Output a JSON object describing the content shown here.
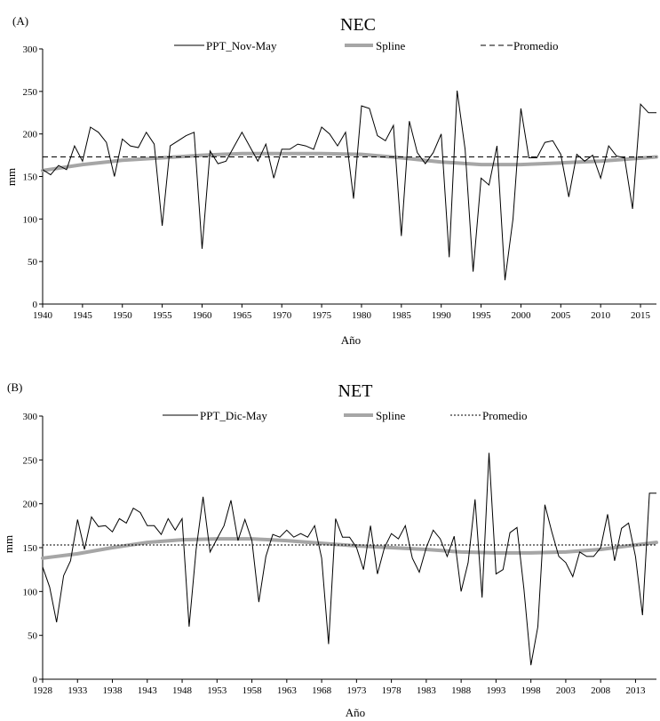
{
  "chart_data": [
    {
      "type": "line",
      "panel_label": "(A)",
      "title": "NEC",
      "xlabel": "Año",
      "ylabel": "mm",
      "ylim": [
        0,
        300
      ],
      "yticks": [
        0,
        50,
        100,
        150,
        200,
        250,
        300
      ],
      "xlim": [
        1940,
        2017
      ],
      "xticks": [
        1940,
        1945,
        1950,
        1955,
        1960,
        1965,
        1970,
        1975,
        1980,
        1985,
        1990,
        1995,
        2000,
        2005,
        2010,
        2015
      ],
      "grid": false,
      "legend_position": "top",
      "series": [
        {
          "name": "PPT_Nov-May",
          "style": "solid-thin",
          "color": "#000000",
          "x": [
            1940,
            1941,
            1942,
            1943,
            1944,
            1945,
            1946,
            1947,
            1948,
            1949,
            1950,
            1951,
            1952,
            1953,
            1954,
            1955,
            1956,
            1957,
            1958,
            1959,
            1960,
            1961,
            1962,
            1963,
            1964,
            1965,
            1966,
            1967,
            1968,
            1969,
            1970,
            1971,
            1972,
            1973,
            1974,
            1975,
            1976,
            1977,
            1978,
            1979,
            1980,
            1981,
            1982,
            1983,
            1984,
            1985,
            1986,
            1987,
            1988,
            1989,
            1990,
            1991,
            1992,
            1993,
            1994,
            1995,
            1996,
            1997,
            1998,
            1999,
            2000,
            2001,
            2002,
            2003,
            2004,
            2005,
            2006,
            2007,
            2008,
            2009,
            2010,
            2011,
            2012,
            2013,
            2014,
            2015,
            2016,
            2017
          ],
          "values": [
            158,
            152,
            163,
            158,
            186,
            168,
            208,
            202,
            190,
            150,
            194,
            186,
            184,
            202,
            188,
            92,
            186,
            192,
            198,
            202,
            65,
            180,
            165,
            168,
            185,
            202,
            185,
            168,
            188,
            148,
            182,
            182,
            188,
            186,
            182,
            208,
            200,
            186,
            202,
            124,
            233,
            230,
            198,
            192,
            210,
            80,
            215,
            178,
            165,
            178,
            200,
            55,
            251,
            182,
            38,
            148,
            140,
            186,
            28,
            100,
            230,
            172,
            172,
            190,
            192,
            176,
            126,
            176,
            168,
            175,
            148,
            186,
            174,
            172,
            112,
            235,
            225,
            225
          ]
        },
        {
          "name": "Spline",
          "style": "thick-gray",
          "color": "#a6a6a6",
          "x": [
            1940,
            1945,
            1950,
            1955,
            1960,
            1965,
            1970,
            1975,
            1980,
            1985,
            1990,
            1995,
            2000,
            2005,
            2010,
            2017
          ],
          "values": [
            157,
            164,
            169,
            172,
            175,
            177,
            177,
            177,
            176,
            172,
            167,
            164,
            164,
            166,
            168,
            173
          ]
        },
        {
          "name": "Promedio",
          "style": "dashed",
          "color": "#000000",
          "x": [
            1940,
            2017
          ],
          "values": [
            173,
            173
          ]
        }
      ]
    },
    {
      "type": "line",
      "panel_label": "(B)",
      "title": "NET",
      "xlabel": "Año",
      "ylabel": "mm",
      "ylim": [
        0,
        300
      ],
      "yticks": [
        0,
        50,
        100,
        150,
        200,
        250,
        300
      ],
      "xlim": [
        1928,
        2016
      ],
      "xticks": [
        1928,
        1933,
        1938,
        1943,
        1948,
        1953,
        1958,
        1963,
        1968,
        1973,
        1978,
        1983,
        1988,
        1993,
        1998,
        2003,
        2008,
        2013
      ],
      "grid": false,
      "legend_position": "top",
      "series": [
        {
          "name": "PPT_Dic-May",
          "style": "solid-thin",
          "color": "#000000",
          "x": [
            1928,
            1929,
            1930,
            1931,
            1932,
            1933,
            1934,
            1935,
            1936,
            1937,
            1938,
            1939,
            1940,
            1941,
            1942,
            1943,
            1944,
            1945,
            1946,
            1947,
            1948,
            1949,
            1950,
            1951,
            1952,
            1953,
            1954,
            1955,
            1956,
            1957,
            1958,
            1959,
            1960,
            1961,
            1962,
            1963,
            1964,
            1965,
            1966,
            1967,
            1968,
            1969,
            1970,
            1971,
            1972,
            1973,
            1974,
            1975,
            1976,
            1977,
            1978,
            1979,
            1980,
            1981,
            1982,
            1983,
            1984,
            1985,
            1986,
            1987,
            1988,
            1989,
            1990,
            1991,
            1992,
            1993,
            1994,
            1995,
            1996,
            1997,
            1998,
            1999,
            2000,
            2001,
            2002,
            2003,
            2004,
            2005,
            2006,
            2007,
            2008,
            2009,
            2010,
            2011,
            2012,
            2013,
            2014,
            2015,
            2016
          ],
          "values": [
            128,
            105,
            65,
            118,
            135,
            182,
            148,
            185,
            174,
            175,
            168,
            183,
            178,
            195,
            190,
            175,
            175,
            165,
            183,
            170,
            183,
            60,
            148,
            208,
            145,
            160,
            175,
            204,
            158,
            182,
            158,
            88,
            140,
            165,
            162,
            170,
            162,
            166,
            162,
            175,
            138,
            40,
            183,
            162,
            162,
            150,
            125,
            175,
            120,
            150,
            166,
            160,
            175,
            138,
            122,
            150,
            170,
            160,
            140,
            163,
            100,
            133,
            205,
            93,
            258,
            120,
            125,
            167,
            173,
            103,
            16,
            60,
            199,
            168,
            140,
            133,
            117,
            145,
            140,
            140,
            150,
            188,
            135,
            172,
            178,
            140,
            73,
            212,
            212
          ]
        },
        {
          "name": "Spline",
          "style": "thick-gray",
          "color": "#a6a6a6",
          "x": [
            1928,
            1933,
            1938,
            1943,
            1948,
            1953,
            1958,
            1963,
            1968,
            1973,
            1978,
            1983,
            1988,
            1993,
            1998,
            2003,
            2008,
            2013,
            2016
          ],
          "values": [
            138,
            143,
            150,
            156,
            159,
            160,
            160,
            158,
            155,
            152,
            150,
            148,
            145,
            144,
            144,
            145,
            148,
            153,
            156
          ]
        },
        {
          "name": "Promedio",
          "style": "dotted",
          "color": "#000000",
          "x": [
            1928,
            2016
          ],
          "values": [
            153,
            153
          ]
        }
      ]
    }
  ]
}
